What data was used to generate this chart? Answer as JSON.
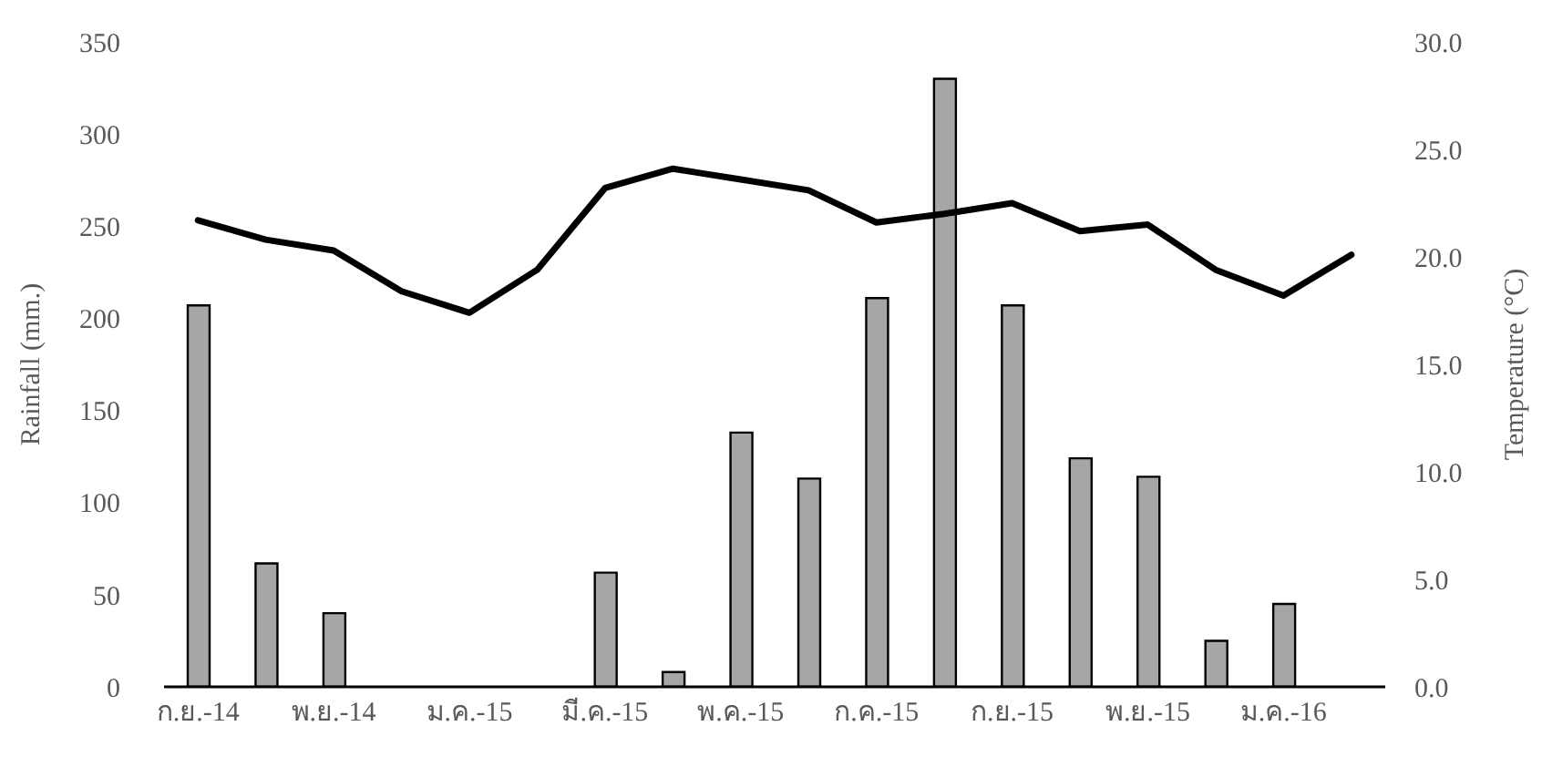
{
  "chart_data": {
    "type": "bar",
    "ylabel": "Rainfall (mm.)",
    "y2label": "Temperature (°C)",
    "categories": [
      "ก.ย.-14",
      null,
      "พ.ย.-14",
      null,
      "ม.ค.-15",
      null,
      "มี.ค.-15",
      null,
      "พ.ค.-15",
      null,
      "ก.ค.-15",
      null,
      "ก.ย.-15",
      null,
      "พ.ย.-15",
      null,
      "ม.ค.-16",
      null
    ],
    "series": [
      {
        "color": "#a6a6a6",
        "values": [
          207,
          67,
          40,
          0,
          0,
          0,
          62,
          8,
          138,
          113,
          211,
          330,
          207,
          124,
          114,
          25,
          45,
          0
        ]
      },
      {
        "type": "line",
        "axis": "y2",
        "color": "#000000",
        "marker": "none",
        "line_style": "solid",
        "values": [
          21.7,
          20.8,
          20.3,
          18.4,
          17.4,
          19.4,
          23.2,
          24.1,
          23.6,
          23.1,
          21.6,
          22.0,
          22.5,
          21.2,
          21.5,
          19.4,
          18.2,
          20.1
        ]
      }
    ],
    "ylim": [
      0,
      350
    ],
    "yticks": [
      0,
      50,
      100,
      150,
      200,
      250,
      300,
      350
    ],
    "y2lim": [
      0,
      30
    ],
    "y2ticks": [
      {
        "value": 0,
        "label": "0.0"
      },
      {
        "value": 5,
        "label": "5.0"
      },
      {
        "value": 10,
        "label": "10.0"
      },
      {
        "value": 15,
        "label": "15.0"
      },
      {
        "value": 20,
        "label": "20.0"
      },
      {
        "value": 25,
        "label": "25.0"
      },
      {
        "value": 30,
        "label": "30.0"
      }
    ],
    "grid": false,
    "legend": false
  }
}
